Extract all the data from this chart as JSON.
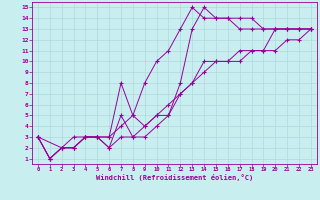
{
  "xlabel": "Windchill (Refroidissement éolien,°C)",
  "bg_color": "#c8eef0",
  "grid_color": "#b0d8dc",
  "line_color": "#990099",
  "xlim": [
    -0.5,
    23.5
  ],
  "ylim": [
    0.5,
    15.5
  ],
  "xticks": [
    0,
    1,
    2,
    3,
    4,
    5,
    6,
    7,
    8,
    9,
    10,
    11,
    12,
    13,
    14,
    15,
    16,
    17,
    18,
    19,
    20,
    21,
    22,
    23
  ],
  "yticks": [
    1,
    2,
    3,
    4,
    5,
    6,
    7,
    8,
    9,
    10,
    11,
    12,
    13,
    14,
    15
  ],
  "line1_x": [
    0,
    1,
    2,
    3,
    4,
    5,
    6,
    7,
    8,
    9,
    10,
    11,
    12,
    13,
    14,
    15,
    16,
    17,
    18,
    19,
    20,
    21,
    22,
    23
  ],
  "line1_y": [
    3,
    1,
    2,
    2,
    3,
    3,
    2,
    5,
    3,
    3,
    4,
    5,
    7,
    8,
    10,
    10,
    10,
    10,
    11,
    11,
    13,
    13,
    13,
    13
  ],
  "line2_x": [
    0,
    1,
    2,
    3,
    4,
    5,
    6,
    7,
    8,
    9,
    10,
    11,
    12,
    13,
    14,
    15,
    16,
    17,
    18,
    19,
    20,
    21,
    22,
    23
  ],
  "line2_y": [
    3,
    1,
    2,
    2,
    3,
    3,
    3,
    4,
    5,
    8,
    10,
    11,
    13,
    15,
    14,
    14,
    14,
    13,
    13,
    13,
    13,
    13,
    13,
    13
  ],
  "line3_x": [
    0,
    2,
    3,
    4,
    5,
    6,
    7,
    8,
    9,
    10,
    11,
    12,
    13,
    14,
    15,
    16,
    17,
    18,
    19,
    20,
    21,
    22,
    23
  ],
  "line3_y": [
    3,
    2,
    3,
    3,
    3,
    3,
    8,
    5,
    4,
    5,
    5,
    8,
    13,
    15,
    14,
    14,
    14,
    14,
    13,
    13,
    13,
    13,
    13
  ],
  "line4_x": [
    0,
    1,
    2,
    3,
    4,
    5,
    6,
    7,
    8,
    9,
    10,
    11,
    12,
    13,
    14,
    15,
    16,
    17,
    18,
    19,
    20,
    21,
    22,
    23
  ],
  "line4_y": [
    3,
    1,
    2,
    2,
    3,
    3,
    2,
    3,
    3,
    4,
    5,
    6,
    7,
    8,
    9,
    10,
    10,
    11,
    11,
    11,
    11,
    12,
    12,
    13
  ]
}
